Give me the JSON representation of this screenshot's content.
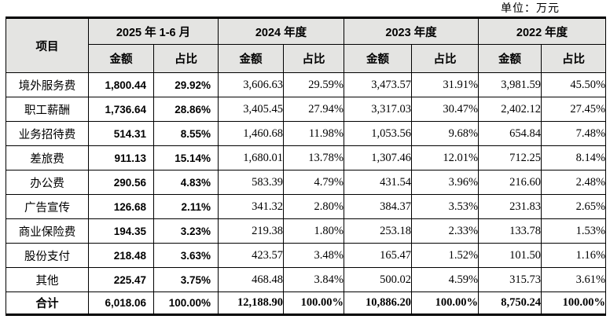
{
  "unit_label": "单位：万元",
  "table": {
    "header": {
      "item_label": "项目",
      "groups": [
        {
          "label": "2025 年 1-6 月"
        },
        {
          "label": "2024 年度"
        },
        {
          "label": "2023 年度"
        },
        {
          "label": "2022 年度"
        }
      ],
      "sub_amount": "金额",
      "sub_ratio": "占比"
    },
    "rows": [
      {
        "label": "境外服务费",
        "values": [
          "1,800.44",
          "29.92%",
          "3,606.63",
          "29.59%",
          "3,473.57",
          "31.91%",
          "3,981.59",
          "45.50%"
        ]
      },
      {
        "label": "职工薪酬",
        "values": [
          "1,736.64",
          "28.86%",
          "3,405.45",
          "27.94%",
          "3,317.03",
          "30.47%",
          "2,402.12",
          "27.45%"
        ]
      },
      {
        "label": "业务招待费",
        "values": [
          "514.31",
          "8.55%",
          "1,460.68",
          "11.98%",
          "1,053.56",
          "9.68%",
          "654.84",
          "7.48%"
        ]
      },
      {
        "label": "差旅费",
        "values": [
          "911.13",
          "15.14%",
          "1,680.01",
          "13.78%",
          "1,307.46",
          "12.01%",
          "712.25",
          "8.14%"
        ]
      },
      {
        "label": "办公费",
        "values": [
          "290.56",
          "4.83%",
          "583.39",
          "4.79%",
          "431.54",
          "3.96%",
          "216.60",
          "2.48%"
        ]
      },
      {
        "label": "广告宣传",
        "values": [
          "126.68",
          "2.11%",
          "341.32",
          "2.80%",
          "384.37",
          "3.53%",
          "231.83",
          "2.65%"
        ]
      },
      {
        "label": "商业保险费",
        "values": [
          "194.35",
          "3.23%",
          "219.38",
          "1.80%",
          "253.18",
          "2.33%",
          "133.78",
          "1.53%"
        ]
      },
      {
        "label": "股份支付",
        "values": [
          "218.48",
          "3.63%",
          "423.57",
          "3.48%",
          "165.47",
          "1.52%",
          "101.50",
          "1.16%"
        ]
      },
      {
        "label": "其他",
        "values": [
          "225.47",
          "3.75%",
          "468.48",
          "3.84%",
          "500.02",
          "4.59%",
          "315.73",
          "3.61%"
        ]
      }
    ],
    "total_row": {
      "label": "合计",
      "values": [
        "6,018.06",
        "100.00%",
        "12,188.90",
        "100.00%",
        "10,886.20",
        "100.00%",
        "8,750.24",
        "100.00%"
      ]
    }
  }
}
